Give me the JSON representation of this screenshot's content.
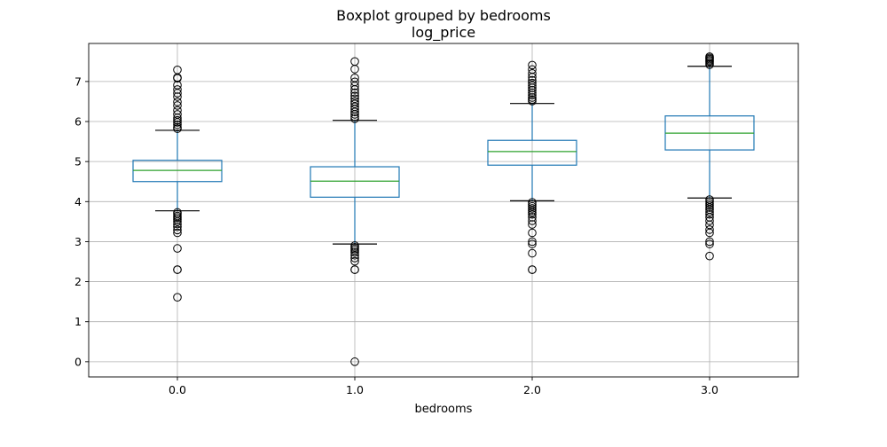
{
  "chart_data": {
    "type": "boxplot",
    "suptitle": "Boxplot grouped by bedrooms",
    "title": "log_price",
    "xlabel": "bedrooms",
    "ylabel": "",
    "ylim": [
      -0.38,
      7.95
    ],
    "yticks": [
      0,
      1,
      2,
      3,
      4,
      5,
      6,
      7
    ],
    "grid": true,
    "categories": [
      "0.0",
      "1.0",
      "2.0",
      "3.0"
    ],
    "boxes": [
      {
        "category": "0.0",
        "whisker_low": 3.77,
        "q1": 4.5,
        "median": 4.78,
        "q3": 5.03,
        "whisker_high": 5.78,
        "outliers": [
          7.29,
          7.1,
          7.08,
          6.91,
          6.8,
          6.71,
          6.62,
          6.49,
          6.4,
          6.28,
          6.18,
          6.09,
          6.03,
          5.98,
          5.92,
          5.86,
          5.82,
          3.73,
          3.69,
          3.64,
          3.6,
          3.55,
          3.5,
          3.44,
          3.37,
          3.29,
          3.22,
          2.83,
          2.3,
          2.3,
          1.61
        ]
      },
      {
        "category": "1.0",
        "whisker_low": 2.94,
        "q1": 4.11,
        "median": 4.51,
        "q3": 4.87,
        "whisker_high": 6.03,
        "outliers": [
          7.5,
          7.31,
          7.09,
          6.99,
          6.89,
          6.8,
          6.72,
          6.64,
          6.57,
          6.5,
          6.44,
          6.37,
          6.31,
          6.24,
          6.18,
          6.12,
          6.07,
          2.9,
          2.86,
          2.82,
          2.78,
          2.73,
          2.66,
          2.59,
          2.51,
          2.3,
          2.3,
          0.0
        ]
      },
      {
        "category": "2.0",
        "whisker_low": 4.02,
        "q1": 4.91,
        "median": 5.25,
        "q3": 5.53,
        "whisker_high": 6.45,
        "outliers": [
          7.41,
          7.3,
          7.2,
          7.11,
          7.03,
          6.96,
          6.9,
          6.84,
          6.78,
          6.72,
          6.66,
          6.6,
          6.55,
          6.51,
          3.98,
          3.93,
          3.88,
          3.83,
          3.78,
          3.73,
          3.68,
          3.61,
          3.52,
          3.43,
          3.22,
          3.0,
          2.94,
          2.71,
          2.3,
          2.3
        ]
      },
      {
        "category": "3.0",
        "whisker_low": 4.09,
        "q1": 5.29,
        "median": 5.71,
        "q3": 6.14,
        "whisker_high": 7.38,
        "outliers": [
          7.62,
          7.59,
          7.56,
          7.53,
          7.5,
          7.46,
          7.42,
          4.05,
          4.0,
          3.95,
          3.9,
          3.85,
          3.8,
          3.74,
          3.68,
          3.61,
          3.52,
          3.42,
          3.3,
          3.22,
          3.0,
          2.94,
          2.64
        ]
      }
    ],
    "colors": {
      "box": "#1f77b4",
      "median": "#2ca02c",
      "whisker_cap": "#000000",
      "grid": "#b0b0b0",
      "outlier_edge": "#000000"
    }
  }
}
